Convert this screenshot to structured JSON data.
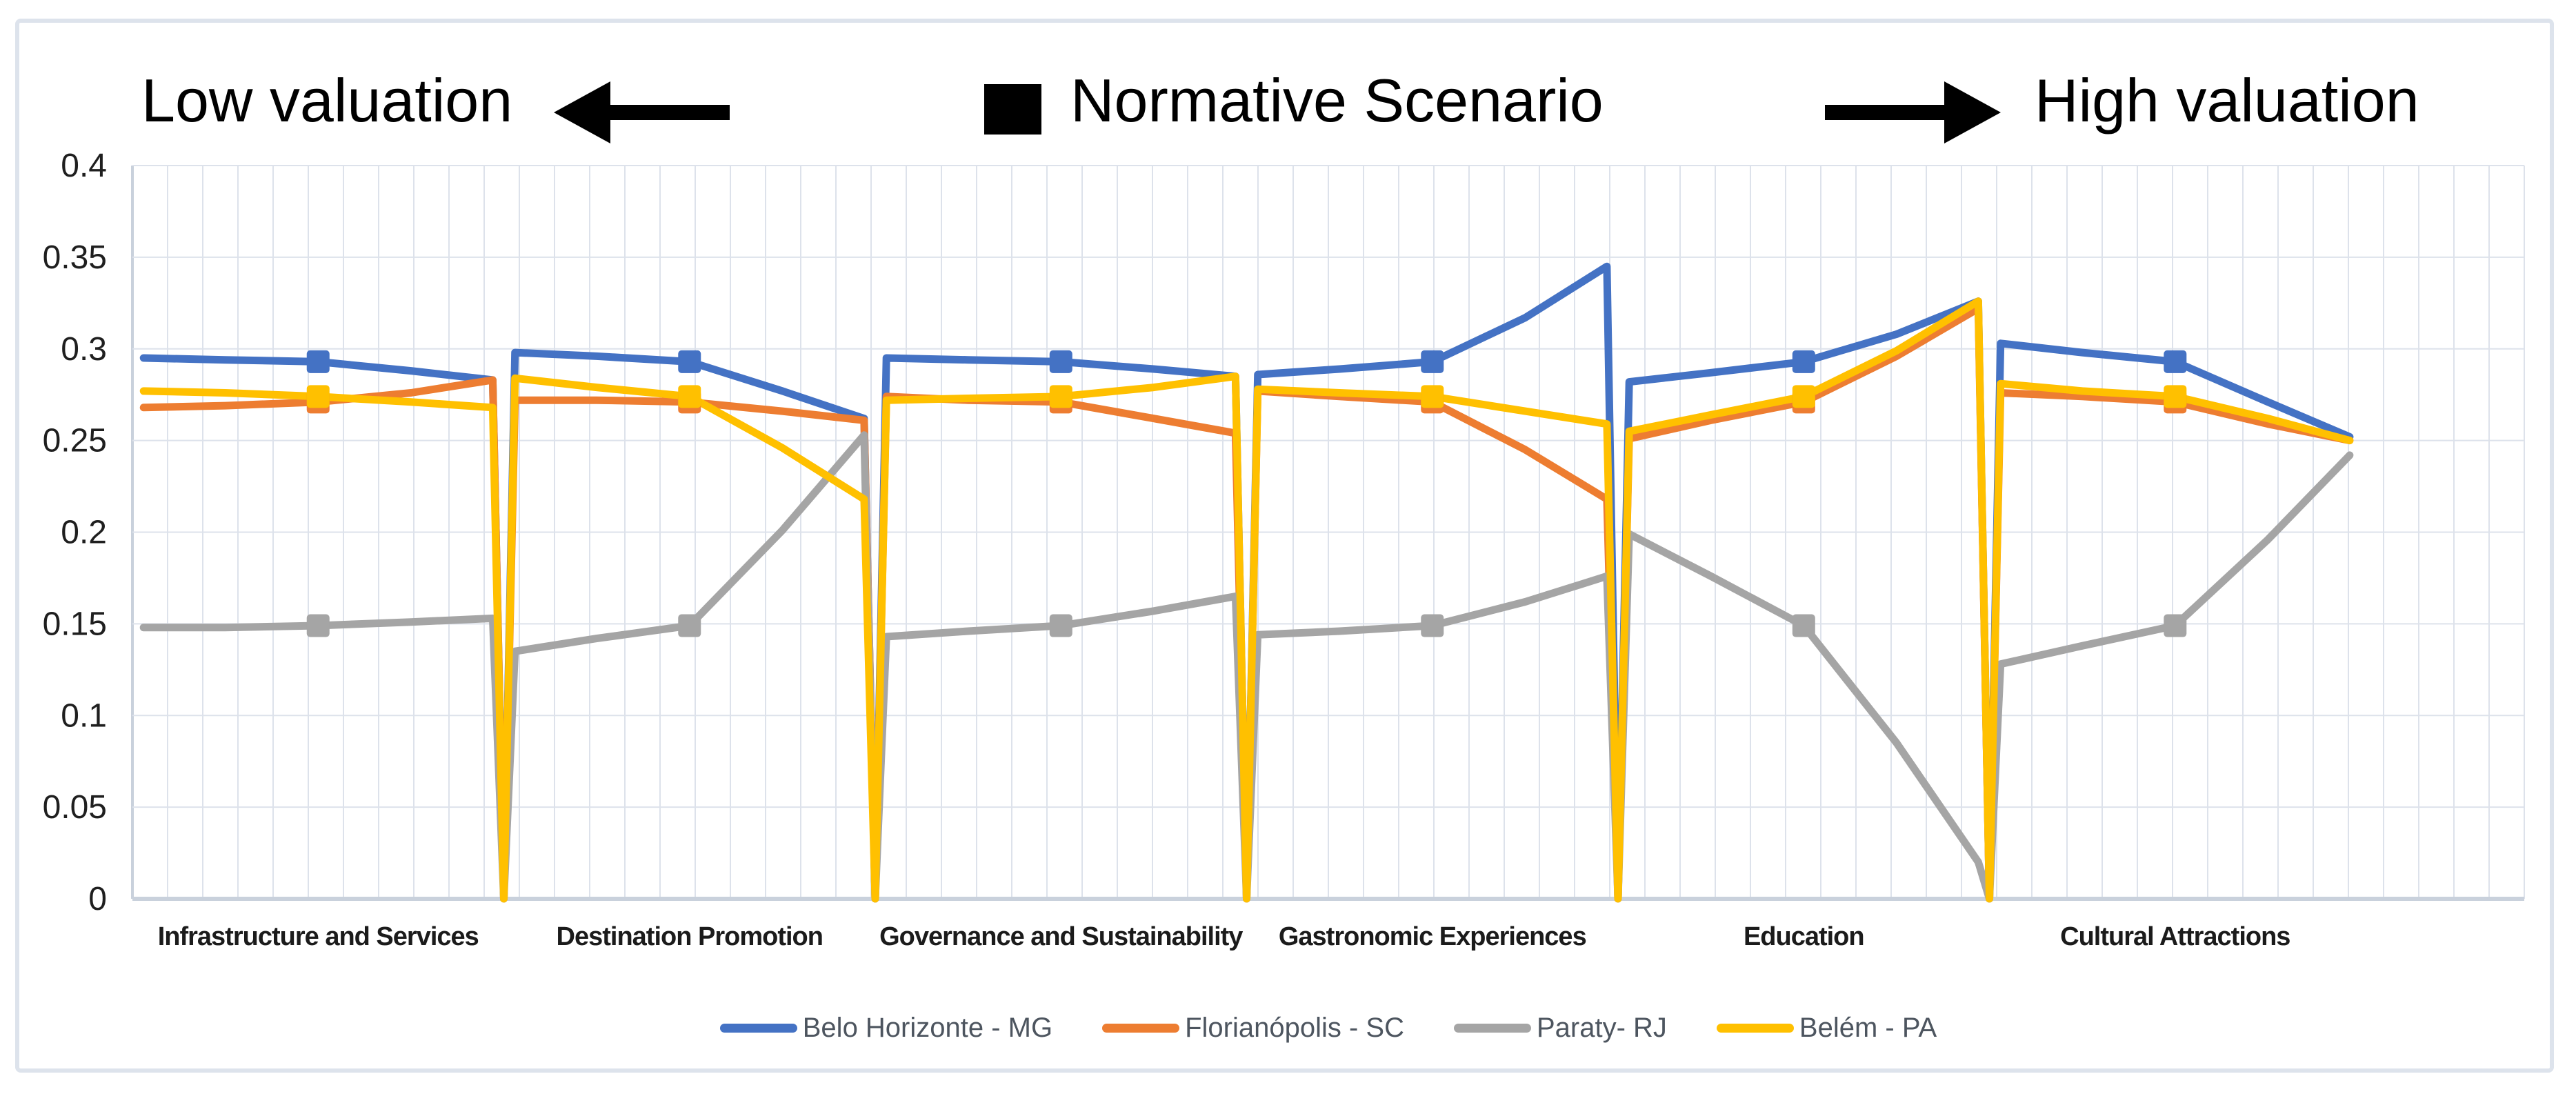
{
  "annotations": {
    "low_label": "Low valuation",
    "normative_label": "Normative Scenario",
    "high_label": "High valuation"
  },
  "colors": {
    "background": "#ffffff",
    "frame_border": "#dde3ec",
    "grid": "#dde2eb",
    "axis": "#c9d1dc",
    "tick_text": "#1f1f1f",
    "category_text": "#1b1b1b",
    "legend_text": "#4d555f",
    "annotation_text": "#000000"
  },
  "chart_data": {
    "type": "line",
    "title": "",
    "xlabel": "",
    "ylabel": "",
    "ylim": [
      0,
      0.4
    ],
    "grid": true,
    "legend_position": "bottom",
    "y_ticks": [
      "0",
      "0.05",
      "0.1",
      "0.15",
      "0.2",
      "0.25",
      "0.3",
      "0.35",
      "0.4"
    ],
    "categories": [
      "Infrastructure and Services",
      "Destination Promotion",
      "Governance and Sustainability",
      "Gastronomic Experiences",
      "Education",
      "Cultural Attractions"
    ],
    "x_units_total": 6.44,
    "x_positions_within_group": [
      0.03,
      0.25,
      0.5,
      0.75,
      0.97
    ],
    "normative_index": 2,
    "gap_value": 0,
    "series": [
      {
        "name": "Belo Horizonte - MG",
        "color": "#4472C4",
        "values_by_category": [
          [
            0.295,
            0.294,
            0.293,
            0.288,
            0.283
          ],
          [
            0.298,
            0.296,
            0.293,
            0.277,
            0.262
          ],
          [
            0.295,
            0.294,
            0.293,
            0.289,
            0.285
          ],
          [
            0.286,
            0.289,
            0.293,
            0.317,
            0.345
          ],
          [
            0.282,
            0.287,
            0.293,
            0.308,
            0.326
          ],
          [
            0.303,
            0.298,
            0.293,
            0.271,
            0.252
          ]
        ]
      },
      {
        "name": "Florianópolis - SC",
        "color": "#ED7D31",
        "values_by_category": [
          [
            0.268,
            0.269,
            0.271,
            0.276,
            0.283
          ],
          [
            0.272,
            0.272,
            0.271,
            0.266,
            0.261
          ],
          [
            0.274,
            0.272,
            0.271,
            0.262,
            0.254
          ],
          [
            0.277,
            0.274,
            0.271,
            0.245,
            0.218
          ],
          [
            0.251,
            0.261,
            0.271,
            0.296,
            0.322
          ],
          [
            0.276,
            0.274,
            0.271,
            0.259,
            0.25
          ]
        ]
      },
      {
        "name": "Paraty- RJ",
        "color": "#A5A5A5",
        "values_by_category": [
          [
            0.148,
            0.148,
            0.149,
            0.151,
            0.153
          ],
          [
            0.135,
            0.142,
            0.149,
            0.201,
            0.253
          ],
          [
            0.143,
            0.146,
            0.149,
            0.157,
            0.165
          ],
          [
            0.144,
            0.146,
            0.149,
            0.162,
            0.176
          ],
          [
            0.199,
            0.176,
            0.149,
            0.085,
            0.02
          ],
          [
            0.128,
            0.138,
            0.149,
            0.196,
            0.242
          ]
        ]
      },
      {
        "name": "Belém - PA",
        "color": "#FFC000",
        "values_by_category": [
          [
            0.277,
            0.276,
            0.274,
            0.271,
            0.268
          ],
          [
            0.284,
            0.279,
            0.274,
            0.246,
            0.218
          ],
          [
            0.272,
            0.273,
            0.274,
            0.279,
            0.285
          ],
          [
            0.278,
            0.276,
            0.274,
            0.266,
            0.259
          ],
          [
            0.255,
            0.264,
            0.274,
            0.299,
            0.326
          ],
          [
            0.281,
            0.277,
            0.274,
            0.262,
            0.25
          ]
        ]
      }
    ]
  }
}
